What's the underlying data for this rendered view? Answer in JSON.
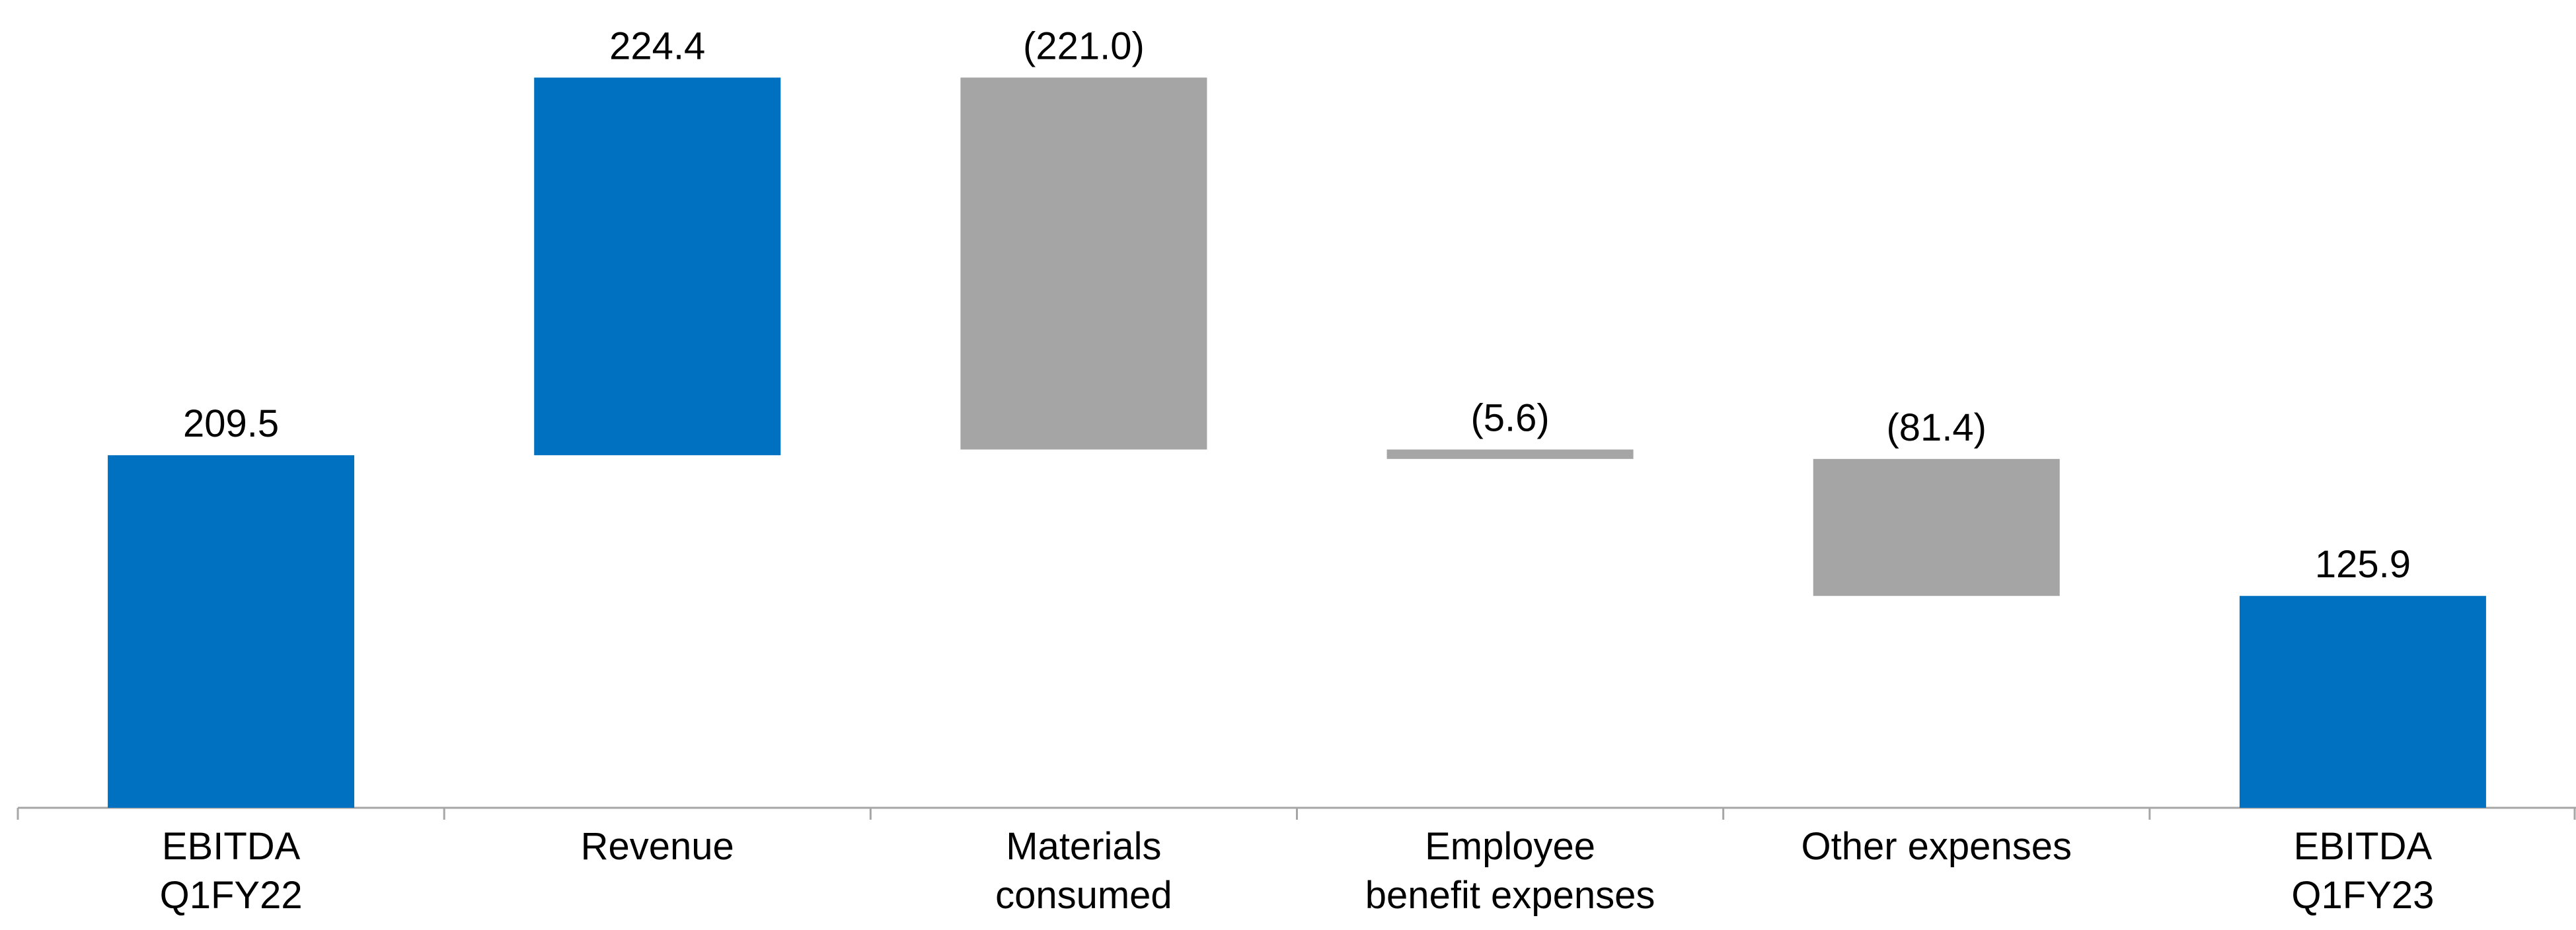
{
  "chart_data": {
    "type": "waterfall",
    "categories": [
      "EBITDA\nQ1FY22",
      "Revenue",
      "Materials\nconsumed",
      "Employee\nbenefit expenses",
      "Other expenses",
      "EBITDA\nQ1FY23"
    ],
    "values": [
      209.5,
      224.4,
      -221.0,
      -5.6,
      -81.4,
      125.9
    ],
    "value_labels": [
      "209.5",
      "224.4",
      "(221.0)",
      "(5.6)",
      "(81.4)",
      "125.9"
    ],
    "measures": [
      "total",
      "relative",
      "relative",
      "relative",
      "relative",
      "total"
    ],
    "total_color": "#0070c0",
    "increase_color": "#0070c0",
    "decrease_color": "#a5a5a5",
    "ylim": [
      0,
      480
    ]
  }
}
